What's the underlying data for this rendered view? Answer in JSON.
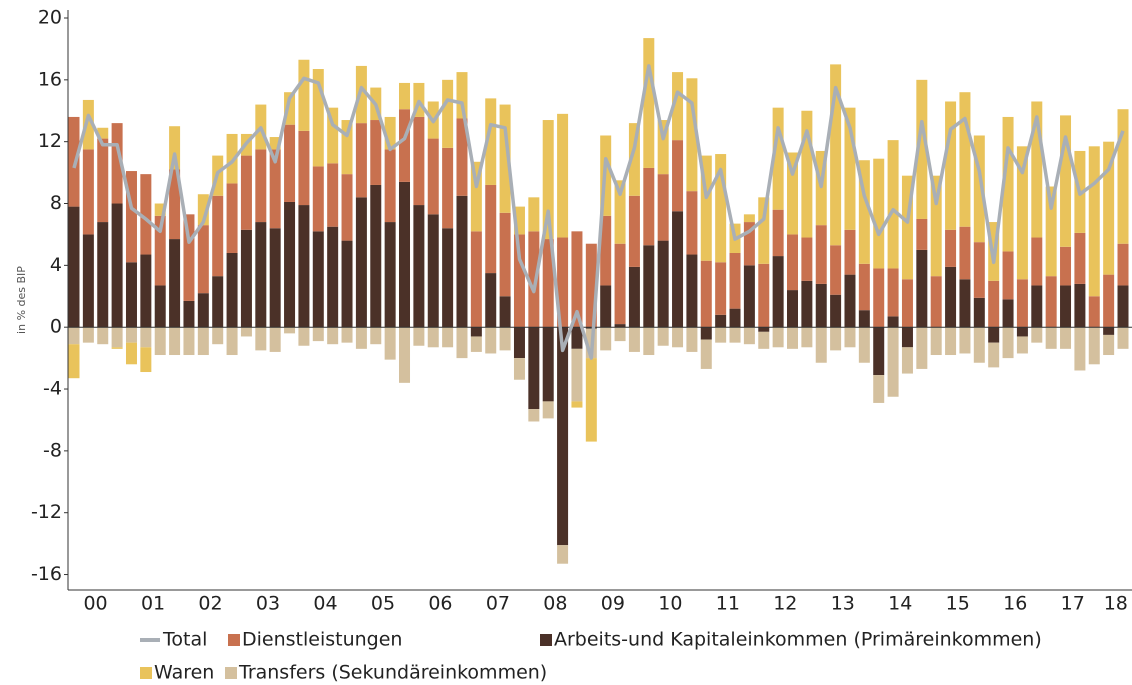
{
  "chart_data": {
    "type": "stacked-bar-line",
    "y_label": "in % des BIP",
    "ylim": [
      -17,
      20
    ],
    "yticks": [
      20,
      16,
      12,
      8,
      4,
      0,
      -4,
      -8,
      -12,
      -16
    ],
    "year_labels": [
      "00",
      "01",
      "02",
      "03",
      "04",
      "05",
      "06",
      "07",
      "08",
      "09",
      "10",
      "11",
      "12",
      "13",
      "14",
      "15",
      "16",
      "17",
      "18"
    ],
    "line": {
      "name": "Total",
      "color": "#a9afb6",
      "values": [
        10.3,
        13.7,
        11.8,
        11.8,
        7.7,
        7.0,
        6.2,
        11.2,
        5.5,
        6.8,
        10.0,
        10.7,
        11.9,
        12.9,
        10.7,
        14.8,
        16.1,
        15.8,
        13.1,
        12.4,
        15.5,
        14.4,
        11.5,
        12.2,
        14.6,
        13.3,
        14.7,
        14.5,
        9.1,
        13.1,
        12.9,
        4.4,
        2.3,
        7.5,
        -1.5,
        1.0,
        -2.0,
        10.9,
        8.6,
        11.6,
        16.9,
        12.2,
        15.2,
        14.5,
        8.4,
        10.2,
        5.7,
        6.2,
        7.0,
        12.9,
        9.9,
        12.7,
        9.1,
        15.5,
        12.9,
        8.5,
        6.0,
        7.6,
        6.8,
        13.3,
        8.0,
        12.8,
        13.5,
        10.1,
        4.2,
        11.6,
        10.0,
        13.6,
        7.7,
        12.3,
        8.6,
        9.3,
        10.2,
        12.7
      ]
    },
    "series": [
      {
        "name": "Dienstleistungen",
        "color": "#c8714f",
        "values": [
          5.8,
          5.5,
          5.4,
          5.2,
          5.9,
          5.2,
          4.5,
          4.5,
          5.6,
          4.4,
          5.2,
          4.5,
          4.8,
          4.7,
          5.1,
          5.0,
          4.8,
          4.2,
          4.1,
          4.3,
          4.8,
          4.2,
          4.7,
          4.7,
          5.7,
          4.9,
          5.2,
          5.0,
          6.2,
          5.7,
          5.4,
          6.0,
          6.2,
          5.7,
          5.8,
          6.2,
          5.4,
          4.5,
          5.2,
          4.6,
          5.0,
          4.3,
          4.6,
          4.1,
          4.3,
          3.4,
          3.6,
          2.8,
          4.1,
          3.0,
          3.6,
          2.8,
          3.8,
          3.2,
          2.9,
          3.0,
          3.8,
          3.1,
          3.1,
          2.0,
          3.3,
          2.4,
          3.4,
          3.6,
          3.0,
          3.1,
          3.1,
          3.1,
          3.3,
          2.5,
          3.3,
          2.0,
          3.4,
          2.7
        ]
      },
      {
        "name": "Arbeits-und Kapitaleinkommen (Primäreinkommen)",
        "color": "#4b3128",
        "values": [
          7.8,
          6.0,
          6.8,
          8.0,
          4.2,
          4.7,
          2.7,
          5.7,
          1.7,
          2.2,
          3.3,
          4.8,
          6.3,
          6.8,
          6.4,
          8.1,
          7.9,
          6.2,
          6.5,
          5.6,
          8.4,
          9.2,
          6.8,
          9.4,
          7.9,
          7.3,
          6.4,
          8.5,
          -0.6,
          3.5,
          2.0,
          -2.0,
          -5.3,
          -4.8,
          -14.1,
          -1.4,
          -0.1,
          2.7,
          0.2,
          3.9,
          5.3,
          5.6,
          7.5,
          4.7,
          -0.8,
          0.8,
          1.2,
          4.0,
          -0.3,
          4.6,
          2.4,
          3.0,
          2.8,
          2.1,
          3.4,
          1.1,
          -3.1,
          0.7,
          -1.3,
          5.0,
          0,
          3.9,
          3.1,
          1.9,
          -1.0,
          1.8,
          -0.6,
          2.7,
          0,
          2.7,
          2.8,
          0,
          -0.5,
          2.7
        ]
      },
      {
        "name": "Waren",
        "color": "#e9c35b",
        "values": [
          -2.2,
          3.2,
          0.7,
          -0.1,
          -1.4,
          -1.6,
          0.8,
          2.8,
          0,
          2.0,
          2.6,
          3.2,
          1.4,
          2.9,
          0.8,
          2.1,
          4.6,
          6.3,
          3.6,
          3.5,
          3.7,
          2.1,
          2.1,
          1.7,
          2.2,
          2.4,
          4.4,
          3.0,
          4.5,
          5.6,
          7.0,
          1.8,
          2.2,
          7.7,
          8.0,
          -0.4,
          -5.4,
          5.2,
          4.1,
          4.7,
          8.4,
          3.5,
          4.4,
          7.3,
          6.8,
          7.0,
          1.9,
          0.5,
          4.3,
          6.6,
          5.3,
          8.2,
          4.8,
          11.7,
          7.9,
          6.7,
          7.1,
          8.3,
          6.7,
          9.0,
          6.5,
          8.3,
          8.7,
          6.9,
          3.8,
          8.7,
          8.6,
          8.8,
          5.8,
          8.5,
          5.3,
          9.7,
          8.6,
          8.7
        ]
      },
      {
        "name": "Transfers (Sekundäreinkommen)",
        "color": "#d4c09e",
        "values": [
          -1.1,
          -1.0,
          -1.1,
          -1.3,
          -1.0,
          -1.3,
          -1.8,
          -1.8,
          -1.8,
          -1.8,
          -1.1,
          -1.8,
          -0.6,
          -1.5,
          -1.6,
          -0.4,
          -1.2,
          -0.9,
          -1.1,
          -1.0,
          -1.4,
          -1.1,
          -2.1,
          -3.6,
          -1.2,
          -1.3,
          -1.3,
          -2.0,
          -1.0,
          -1.7,
          -1.5,
          -1.4,
          -0.8,
          -1.1,
          -1.2,
          -3.4,
          -1.9,
          -1.5,
          -0.9,
          -1.6,
          -1.8,
          -1.2,
          -1.3,
          -1.6,
          -1.9,
          -1.0,
          -1.0,
          -1.1,
          -1.1,
          -1.3,
          -1.4,
          -1.3,
          -2.3,
          -1.5,
          -1.3,
          -2.3,
          -1.8,
          -4.5,
          -1.7,
          -2.7,
          -1.8,
          -1.8,
          -1.7,
          -2.3,
          -1.6,
          -2.0,
          -1.1,
          -1.0,
          -1.4,
          -1.4,
          -2.8,
          -2.4,
          -1.3,
          -1.4
        ]
      }
    ]
  }
}
